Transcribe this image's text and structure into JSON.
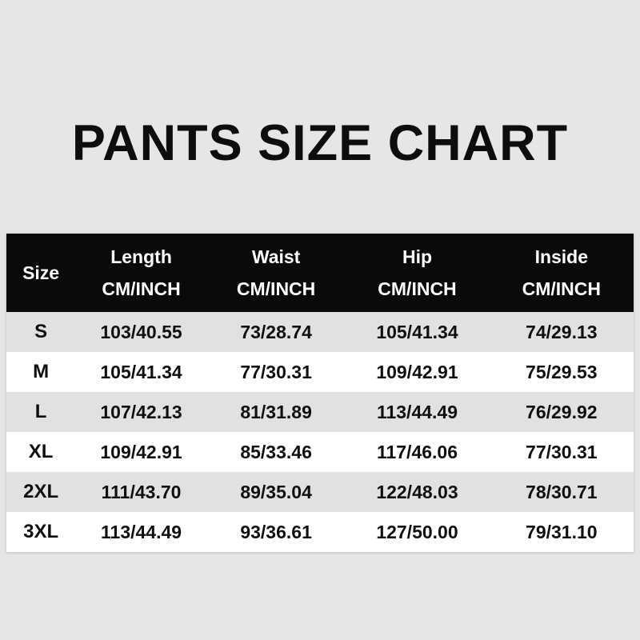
{
  "page": {
    "title": "PANTS SIZE CHART"
  },
  "colors": {
    "background": "#e6e6e6",
    "header_bg": "#0a0a0a",
    "header_text": "#ffffff",
    "row_shaded": "#e1e1e1",
    "row_plain": "#ffffff",
    "text": "#0f0f0f"
  },
  "chart_data": {
    "type": "table",
    "title": "PANTS SIZE CHART",
    "columns": [
      {
        "label": "Size",
        "sub": ""
      },
      {
        "label": "Length",
        "sub": "CM/INCH"
      },
      {
        "label": "Waist",
        "sub": "CM/INCH"
      },
      {
        "label": "Hip",
        "sub": "CM/INCH"
      },
      {
        "label": "Inside",
        "sub": "CM/INCH"
      }
    ],
    "rows": [
      {
        "size": "S",
        "length": "103/40.55",
        "waist": "73/28.74",
        "hip": "105/41.34",
        "inside": "74/29.13"
      },
      {
        "size": "M",
        "length": "105/41.34",
        "waist": "77/30.31",
        "hip": "109/42.91",
        "inside": "75/29.53"
      },
      {
        "size": "L",
        "length": "107/42.13",
        "waist": "81/31.89",
        "hip": "113/44.49",
        "inside": "76/29.92"
      },
      {
        "size": "XL",
        "length": "109/42.91",
        "waist": "85/33.46",
        "hip": "117/46.06",
        "inside": "77/30.31"
      },
      {
        "size": "2XL",
        "length": "111/43.70",
        "waist": "89/35.04",
        "hip": "122/48.03",
        "inside": "78/30.71"
      },
      {
        "size": "3XL",
        "length": "113/44.49",
        "waist": "93/36.61",
        "hip": "127/50.00",
        "inside": "79/31.10"
      }
    ]
  }
}
